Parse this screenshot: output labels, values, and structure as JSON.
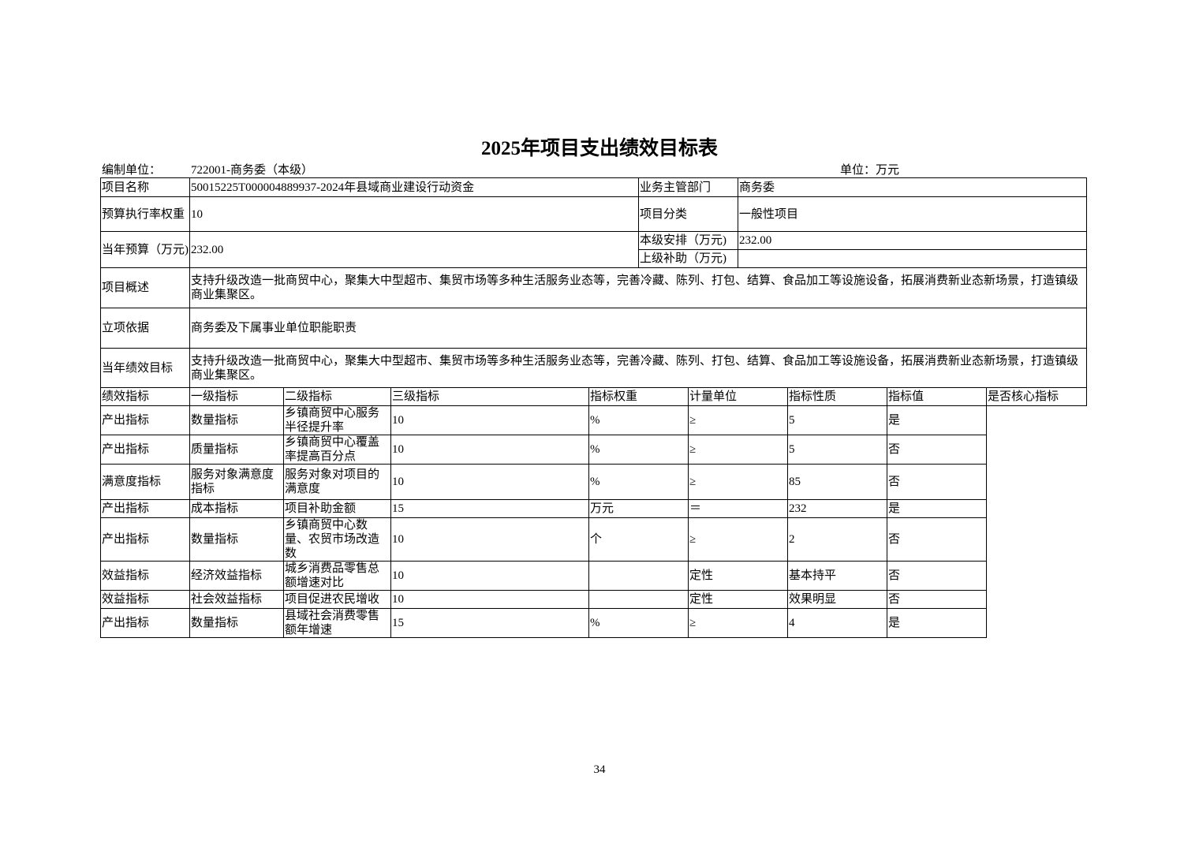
{
  "title": "2025年项目支出绩效目标表",
  "header": {
    "org_label": "编制单位：",
    "org_value": "722001-商务委（本级）",
    "unit": "单位：万元"
  },
  "info": {
    "project_name_label": "项目名称",
    "project_name": "50015225T000004889937-2024年县域商业建设行动资金",
    "dept_label": "业务主管部门",
    "dept": "商务委",
    "weight_label": "预算执行率权重",
    "weight": "10",
    "category_label": "项目分类",
    "category": "一般性项目",
    "budget_label": "当年预算（万元)",
    "budget": "232.00",
    "local_label": "本级安排（万元)",
    "local": "232.00",
    "upper_label": "上级补助（万元)",
    "upper": "",
    "overview_label": "项目概述",
    "overview": "支持升级改造一批商贸中心，聚集大中型超市、集贸市场等多种生活服务业态等，完善冷藏、陈列、打包、结算、食品加工等设施设备，拓展消费新业态新场景，打造镇级商业集聚区。",
    "basis_label": "立项依据",
    "basis": "商务委及下属事业单位职能职责",
    "goal_label": "当年绩效目标",
    "goal": "支持升级改造一批商贸中心，聚集大中型超市、集贸市场等多种生活服务业态等，完善冷藏、陈列、打包、结算、食品加工等设施设备，拓展消费新业态新场景，打造镇级商业集聚区。"
  },
  "indicators": {
    "label": "绩效指标",
    "columns": [
      "一级指标",
      "二级指标",
      "三级指标",
      "指标权重",
      "计量单位",
      "指标性质",
      "指标值",
      "是否核心指标"
    ],
    "rows": [
      [
        "产出指标",
        "数量指标",
        "乡镇商贸中心服务半径提升率",
        "10",
        "%",
        "≥",
        "5",
        "是"
      ],
      [
        "产出指标",
        "质量指标",
        "乡镇商贸中心覆盖率提高百分点",
        "10",
        "%",
        "≥",
        "5",
        "否"
      ],
      [
        "满意度指标",
        "服务对象满意度指标",
        "服务对象对项目的满意度",
        "10",
        "%",
        "≥",
        "85",
        "否"
      ],
      [
        "产出指标",
        "成本指标",
        "项目补助金额",
        "15",
        "万元",
        "＝",
        "232",
        "是"
      ],
      [
        "产出指标",
        "数量指标",
        "乡镇商贸中心数量、农贸市场改造数",
        "10",
        "个",
        "≥",
        "2",
        "否"
      ],
      [
        "效益指标",
        "经济效益指标",
        "城乡消费品零售总额增速对比",
        "10",
        "",
        "定性",
        "基本持平",
        "否"
      ],
      [
        "效益指标",
        "社会效益指标",
        "项目促进农民增收",
        "10",
        "",
        "定性",
        "效果明显",
        "否"
      ],
      [
        "产出指标",
        "数量指标",
        "县域社会消费零售额年增速",
        "15",
        "%",
        "≥",
        "4",
        "是"
      ]
    ]
  },
  "page_number": "34"
}
